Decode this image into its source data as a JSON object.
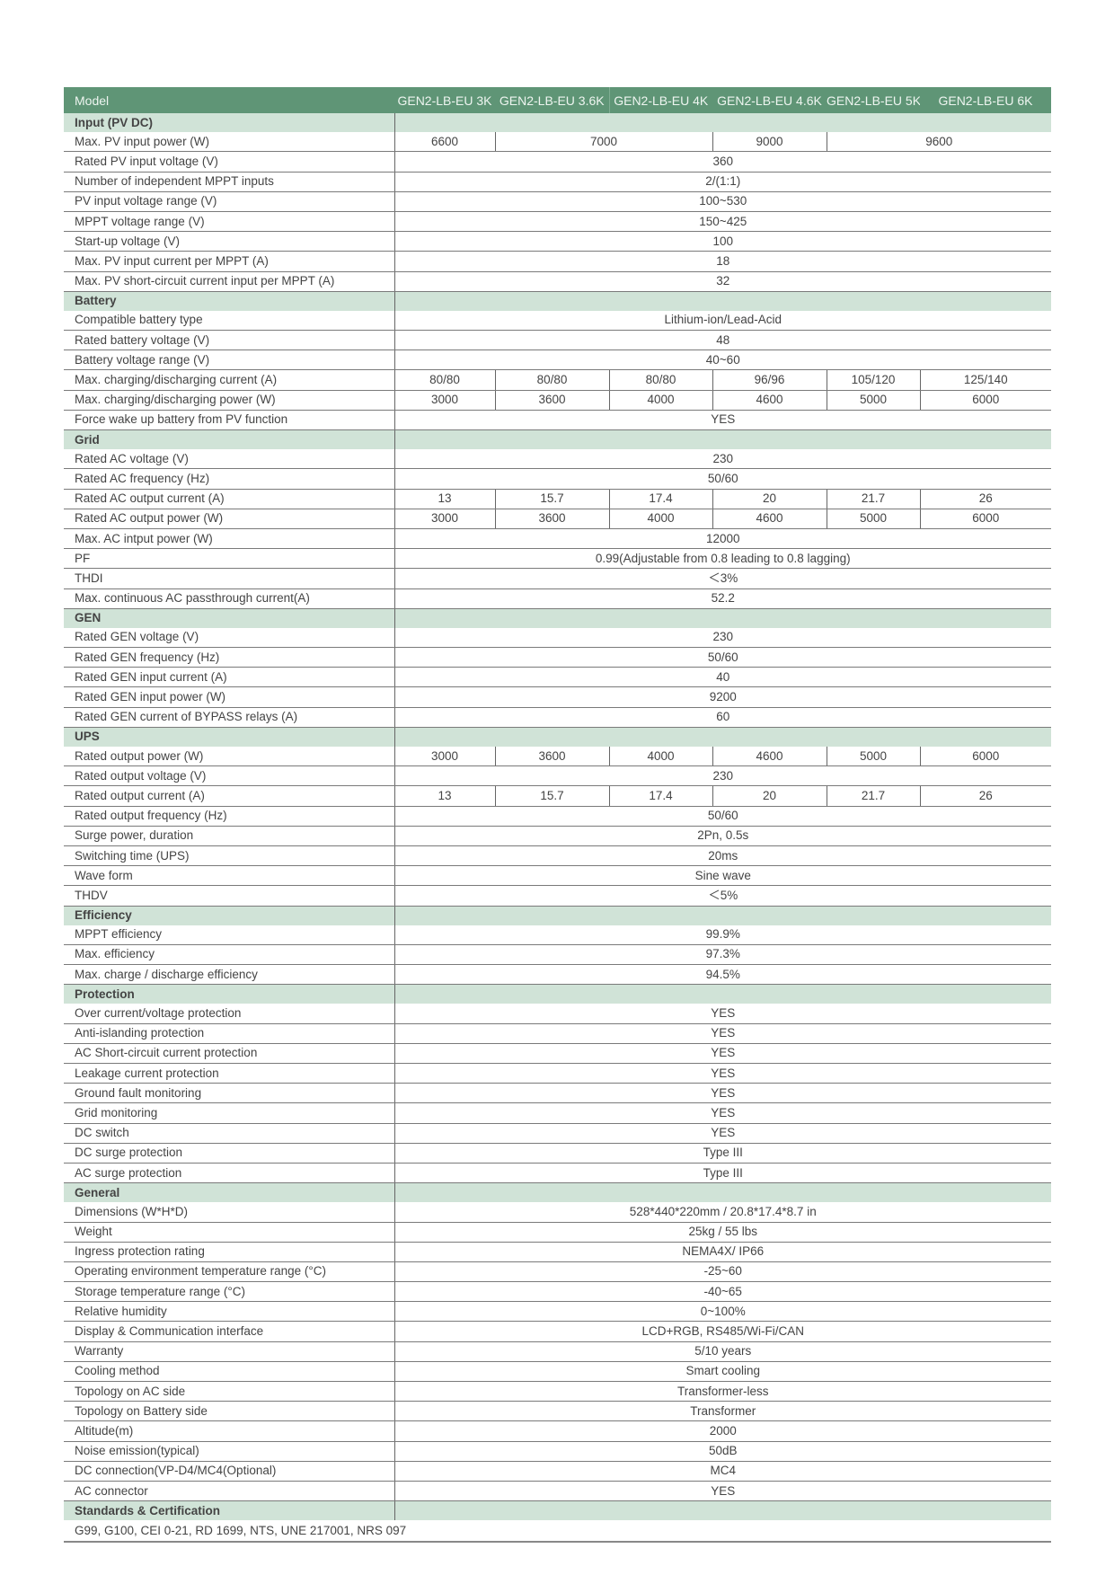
{
  "header": {
    "model_label": "Model",
    "columns": [
      "GEN2-LB-EU 3K",
      "GEN2-LB-EU 3.6K",
      "GEN2-LB-EU 4K",
      "GEN2-LB-EU 4.6K",
      "GEN2-LB-EU 5K",
      "GEN2-LB-EU 6K"
    ]
  },
  "colors": {
    "header_bg": "#5f9576",
    "section_bg": "#d0e3d7",
    "text": "#444444"
  },
  "rows": [
    {
      "section": "Input (PV DC)"
    },
    {
      "label": "Max. PV input power (W)",
      "cells": [
        {
          "v": "6600",
          "span": 1
        },
        {
          "v": "7000",
          "span": 2
        },
        {
          "v": "9000",
          "span": 1
        },
        {
          "v": "9600",
          "span": 2
        }
      ]
    },
    {
      "label": "Rated PV input voltage (V)",
      "cells": [
        {
          "v": "360",
          "span": 6
        }
      ]
    },
    {
      "label": "Number of independent MPPT inputs",
      "cells": [
        {
          "v": "2/(1:1)",
          "span": 6
        }
      ]
    },
    {
      "label": "PV input voltage range (V)",
      "cells": [
        {
          "v": "100~530",
          "span": 6
        }
      ]
    },
    {
      "label": "MPPT voltage range (V)",
      "cells": [
        {
          "v": "150~425",
          "span": 6
        }
      ]
    },
    {
      "label": "Start-up voltage (V)",
      "cells": [
        {
          "v": "100",
          "span": 6
        }
      ]
    },
    {
      "label": "Max. PV input current per MPPT (A)",
      "cells": [
        {
          "v": "18",
          "span": 6
        }
      ]
    },
    {
      "label": "Max. PV short-circuit current input per MPPT (A)",
      "cells": [
        {
          "v": "32",
          "span": 6
        }
      ]
    },
    {
      "section": "Battery"
    },
    {
      "label": "Compatible battery type",
      "cells": [
        {
          "v": "Lithium-ion/Lead-Acid",
          "span": 6
        }
      ]
    },
    {
      "label": "Rated battery voltage (V)",
      "cells": [
        {
          "v": "48",
          "span": 6
        }
      ]
    },
    {
      "label": "Battery voltage range (V)",
      "cells": [
        {
          "v": "40~60",
          "span": 6
        }
      ]
    },
    {
      "label": "Max. charging/discharging current (A)",
      "cells": [
        {
          "v": "80/80",
          "span": 1
        },
        {
          "v": "80/80",
          "span": 1
        },
        {
          "v": "80/80",
          "span": 1
        },
        {
          "v": "96/96",
          "span": 1
        },
        {
          "v": "105/120",
          "span": 1
        },
        {
          "v": "125/140",
          "span": 1
        }
      ]
    },
    {
      "label": "Max. charging/discharging power (W)",
      "cells": [
        {
          "v": "3000",
          "span": 1
        },
        {
          "v": "3600",
          "span": 1
        },
        {
          "v": "4000",
          "span": 1
        },
        {
          "v": "4600",
          "span": 1
        },
        {
          "v": "5000",
          "span": 1
        },
        {
          "v": "6000",
          "span": 1
        }
      ]
    },
    {
      "label": "Force wake up battery from PV function",
      "cells": [
        {
          "v": "YES",
          "span": 6
        }
      ]
    },
    {
      "section": "Grid"
    },
    {
      "label": "Rated AC voltage (V)",
      "cells": [
        {
          "v": "230",
          "span": 6
        }
      ]
    },
    {
      "label": "Rated AC frequency (Hz)",
      "cells": [
        {
          "v": "50/60",
          "span": 6
        }
      ]
    },
    {
      "label": "Rated AC output current (A)",
      "cells": [
        {
          "v": "13",
          "span": 1
        },
        {
          "v": "15.7",
          "span": 1
        },
        {
          "v": "17.4",
          "span": 1
        },
        {
          "v": "20",
          "span": 1
        },
        {
          "v": "21.7",
          "span": 1
        },
        {
          "v": "26",
          "span": 1
        }
      ]
    },
    {
      "label": "Rated AC output power (W)",
      "cells": [
        {
          "v": "3000",
          "span": 1
        },
        {
          "v": "3600",
          "span": 1
        },
        {
          "v": "4000",
          "span": 1
        },
        {
          "v": "4600",
          "span": 1
        },
        {
          "v": "5000",
          "span": 1
        },
        {
          "v": "6000",
          "span": 1
        }
      ]
    },
    {
      "label": "Max. AC intput power (W)",
      "cells": [
        {
          "v": "12000",
          "span": 6
        }
      ]
    },
    {
      "label": "PF",
      "cells": [
        {
          "v": "0.99(Adjustable from 0.8 leading to 0.8 lagging)",
          "span": 6
        }
      ]
    },
    {
      "label": "THDI",
      "cells": [
        {
          "v": "＜3%",
          "span": 6
        }
      ]
    },
    {
      "label": "Max. continuous AC passthrough current(A)",
      "cells": [
        {
          "v": "52.2",
          "span": 6
        }
      ]
    },
    {
      "section": "GEN"
    },
    {
      "label": "Rated GEN voltage (V)",
      "cells": [
        {
          "v": "230",
          "span": 6
        }
      ]
    },
    {
      "label": "Rated GEN frequency (Hz)",
      "cells": [
        {
          "v": "50/60",
          "span": 6
        }
      ]
    },
    {
      "label": "Rated GEN input current (A)",
      "cells": [
        {
          "v": "40",
          "span": 6
        }
      ]
    },
    {
      "label": "Rated GEN input power (W)",
      "cells": [
        {
          "v": "9200",
          "span": 6
        }
      ]
    },
    {
      "label": "Rated GEN current of BYPASS relays (A)",
      "cells": [
        {
          "v": "60",
          "span": 6
        }
      ]
    },
    {
      "section": "UPS"
    },
    {
      "label": "Rated output power (W)",
      "cells": [
        {
          "v": "3000",
          "span": 1
        },
        {
          "v": "3600",
          "span": 1
        },
        {
          "v": "4000",
          "span": 1
        },
        {
          "v": "4600",
          "span": 1
        },
        {
          "v": "5000",
          "span": 1
        },
        {
          "v": "6000",
          "span": 1
        }
      ]
    },
    {
      "label": "Rated output voltage (V)",
      "cells": [
        {
          "v": "230",
          "span": 6
        }
      ]
    },
    {
      "label": "Rated output current (A)",
      "cells": [
        {
          "v": "13",
          "span": 1
        },
        {
          "v": "15.7",
          "span": 1
        },
        {
          "v": "17.4",
          "span": 1
        },
        {
          "v": "20",
          "span": 1
        },
        {
          "v": "21.7",
          "span": 1
        },
        {
          "v": "26",
          "span": 1
        }
      ]
    },
    {
      "label": "Rated output frequency (Hz)",
      "cells": [
        {
          "v": "50/60",
          "span": 6
        }
      ]
    },
    {
      "label": "Surge power, duration",
      "cells": [
        {
          "v": "2Pn, 0.5s",
          "span": 6
        }
      ]
    },
    {
      "label": "Switching time (UPS)",
      "cells": [
        {
          "v": "20ms",
          "span": 6
        }
      ]
    },
    {
      "label": "Wave form",
      "cells": [
        {
          "v": "Sine wave",
          "span": 6
        }
      ]
    },
    {
      "label": "THDV",
      "cells": [
        {
          "v": "＜5%",
          "span": 6
        }
      ]
    },
    {
      "section": "Efficiency"
    },
    {
      "label": "MPPT efficiency",
      "cells": [
        {
          "v": "99.9%",
          "span": 6
        }
      ]
    },
    {
      "label": "Max. efficiency",
      "cells": [
        {
          "v": "97.3%",
          "span": 6
        }
      ]
    },
    {
      "label": "Max. charge / discharge efficiency",
      "cells": [
        {
          "v": "94.5%",
          "span": 6
        }
      ]
    },
    {
      "section": "Protection"
    },
    {
      "label": "Over current/voltage protection",
      "cells": [
        {
          "v": "YES",
          "span": 6
        }
      ]
    },
    {
      "label": "Anti-islanding protection",
      "cells": [
        {
          "v": "YES",
          "span": 6
        }
      ]
    },
    {
      "label": "AC Short-circuit current protection",
      "cells": [
        {
          "v": "YES",
          "span": 6
        }
      ]
    },
    {
      "label": "Leakage current protection",
      "cells": [
        {
          "v": "YES",
          "span": 6
        }
      ]
    },
    {
      "label": "Ground fault monitoring",
      "cells": [
        {
          "v": "YES",
          "span": 6
        }
      ]
    },
    {
      "label": "Grid monitoring",
      "cells": [
        {
          "v": "YES",
          "span": 6
        }
      ]
    },
    {
      "label": "DC switch",
      "cells": [
        {
          "v": "YES",
          "span": 6
        }
      ]
    },
    {
      "label": "DC surge protection",
      "cells": [
        {
          "v": "Type III",
          "span": 6
        }
      ]
    },
    {
      "label": "AC surge protection",
      "cells": [
        {
          "v": "Type III",
          "span": 6
        }
      ]
    },
    {
      "section": "General"
    },
    {
      "label": "Dimensions (W*H*D)",
      "cells": [
        {
          "v": "528*440*220mm / 20.8*17.4*8.7 in",
          "span": 6
        }
      ]
    },
    {
      "label": "Weight",
      "cells": [
        {
          "v": "25kg / 55 lbs",
          "span": 6
        }
      ]
    },
    {
      "label": "Ingress protection rating",
      "cells": [
        {
          "v": "NEMA4X/ IP66",
          "span": 6
        }
      ]
    },
    {
      "label": "Operating environment temperature range (°C)",
      "cells": [
        {
          "v": "-25~60",
          "span": 6
        }
      ]
    },
    {
      "label": "Storage temperature range (°C)",
      "cells": [
        {
          "v": "-40~65",
          "span": 6
        }
      ]
    },
    {
      "label": "Relative humidity",
      "cells": [
        {
          "v": "0~100%",
          "span": 6
        }
      ]
    },
    {
      "label": "Display & Communication interface",
      "cells": [
        {
          "v": "LCD+RGB, RS485/Wi-Fi/CAN",
          "span": 6
        }
      ]
    },
    {
      "label": "Warranty",
      "cells": [
        {
          "v": "5/10 years",
          "span": 6
        }
      ]
    },
    {
      "label": "Cooling method",
      "cells": [
        {
          "v": "Smart cooling",
          "span": 6
        }
      ]
    },
    {
      "label": "Topology on AC side",
      "cells": [
        {
          "v": "Transformer-less",
          "span": 6
        }
      ]
    },
    {
      "label": "Topology on Battery side",
      "cells": [
        {
          "v": "Transformer",
          "span": 6
        }
      ]
    },
    {
      "label": "Altitude(m)",
      "cells": [
        {
          "v": "2000",
          "span": 6
        }
      ]
    },
    {
      "label": "Noise emission(typical)",
      "cells": [
        {
          "v": "50dB",
          "span": 6
        }
      ]
    },
    {
      "label": "DC connection(VP-D4/MC4(Optional)",
      "cells": [
        {
          "v": "MC4",
          "span": 6
        }
      ]
    },
    {
      "label": "AC connector",
      "cells": [
        {
          "v": "YES",
          "span": 6
        }
      ]
    },
    {
      "section": "Standards & Certification"
    }
  ],
  "certifications": "G99, G100, CEI 0-21, RD 1699, NTS, UNE 217001, NRS 097"
}
